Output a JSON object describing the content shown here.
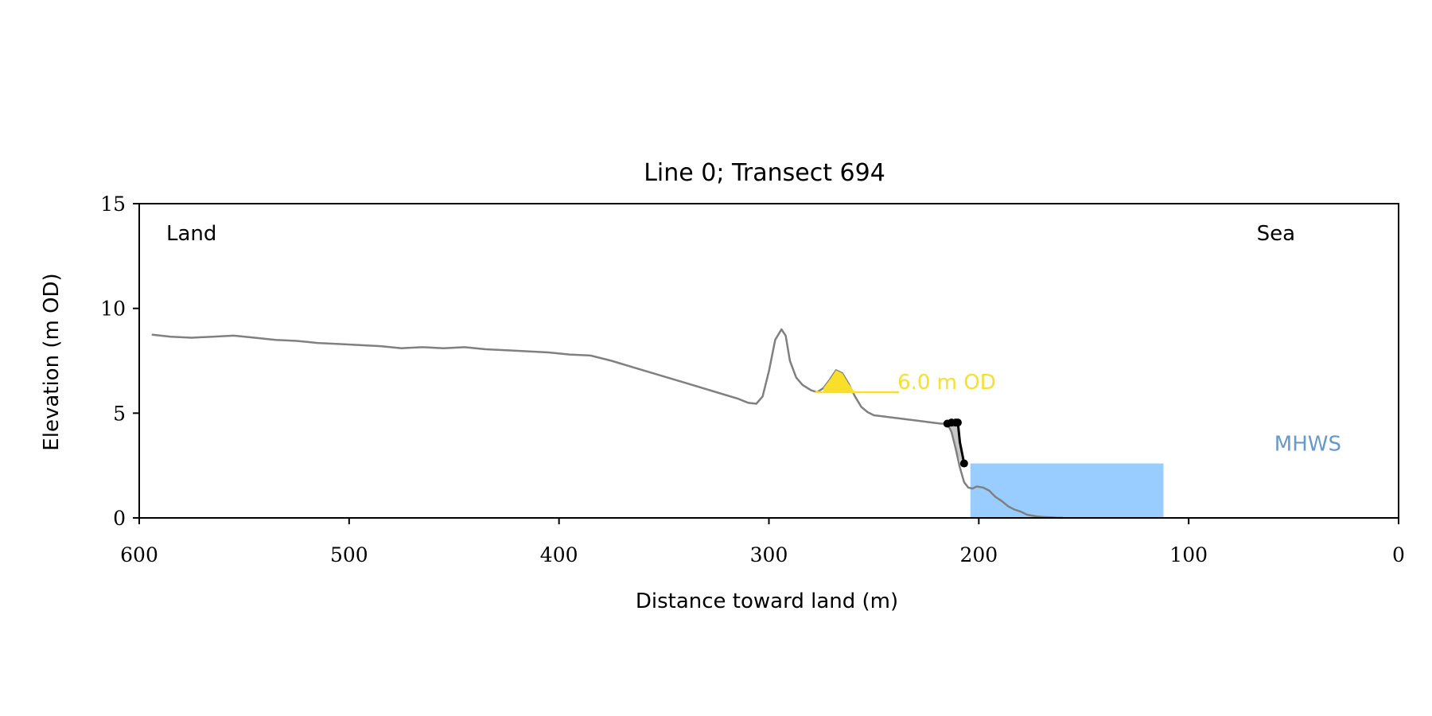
{
  "chart_data": {
    "type": "line",
    "title": "Line 0; Transect 694",
    "xlabel": "Distance toward land (m)",
    "ylabel": "Elevation (m OD)",
    "xlim": [
      600,
      0
    ],
    "ylim": [
      0,
      15
    ],
    "x_reversed": true,
    "x_ticks": [
      600,
      500,
      400,
      300,
      200,
      100,
      0
    ],
    "y_ticks": [
      0,
      5,
      10,
      15
    ],
    "grid": false,
    "corner_labels": {
      "left": "Land",
      "right": "Sea"
    },
    "profile": {
      "color": "#808080",
      "x": [
        594,
        585,
        575,
        565,
        555,
        545,
        535,
        525,
        515,
        505,
        495,
        485,
        475,
        465,
        455,
        445,
        435,
        425,
        415,
        405,
        395,
        385,
        375,
        365,
        355,
        345,
        335,
        325,
        315,
        310,
        306,
        303,
        300,
        297,
        294,
        292,
        290,
        287,
        284,
        280,
        277,
        274,
        271,
        268,
        265,
        262,
        259,
        256,
        253,
        250,
        246,
        242,
        238,
        234,
        230,
        226,
        222,
        218,
        215,
        213,
        211,
        209,
        207,
        205,
        203,
        201,
        198,
        195,
        192,
        189,
        186,
        183,
        180,
        177,
        173,
        170,
        166,
        163,
        160
      ],
      "y": [
        8.75,
        8.65,
        8.6,
        8.65,
        8.7,
        8.6,
        8.5,
        8.45,
        8.35,
        8.3,
        8.25,
        8.2,
        8.1,
        8.15,
        8.1,
        8.15,
        8.05,
        8.0,
        7.95,
        7.9,
        7.8,
        7.75,
        7.5,
        7.2,
        6.9,
        6.6,
        6.3,
        6.0,
        5.7,
        5.5,
        5.45,
        5.8,
        7.0,
        8.5,
        9.0,
        8.7,
        7.5,
        6.7,
        6.35,
        6.1,
        6.0,
        6.2,
        6.6,
        7.05,
        6.9,
        6.4,
        5.8,
        5.3,
        5.05,
        4.9,
        4.85,
        4.8,
        4.75,
        4.7,
        4.65,
        4.6,
        4.55,
        4.5,
        4.5,
        4.1,
        3.3,
        2.4,
        1.7,
        1.45,
        1.4,
        1.5,
        1.45,
        1.3,
        1.0,
        0.8,
        0.55,
        0.4,
        0.3,
        0.15,
        0.08,
        0.05,
        0.03,
        0.01,
        0.0
      ]
    },
    "threshold": {
      "label": "6.0 m OD",
      "value": 6.0,
      "x_start": 278,
      "x_end": 238,
      "color": "#f9df2c",
      "fill_x": [
        274,
        271,
        268,
        265,
        262,
        259
      ],
      "fill_y": [
        6.2,
        6.6,
        7.05,
        6.9,
        6.4,
        6.0
      ]
    },
    "cliff": {
      "color": "#000000",
      "shade_color": "#c8c8c8",
      "x": [
        215,
        212,
        210,
        209,
        207
      ],
      "y": [
        4.5,
        4.55,
        4.55,
        3.6,
        2.6
      ],
      "markers_x": [
        215,
        213,
        211,
        210,
        207
      ],
      "markers_y": [
        4.5,
        4.55,
        4.55,
        4.55,
        2.6
      ]
    },
    "mhws": {
      "label": "MHWS",
      "value": 2.6,
      "fill_color": "#99ccff",
      "label_color": "#6699cc",
      "x_start": 204,
      "x_end": 112
    }
  }
}
